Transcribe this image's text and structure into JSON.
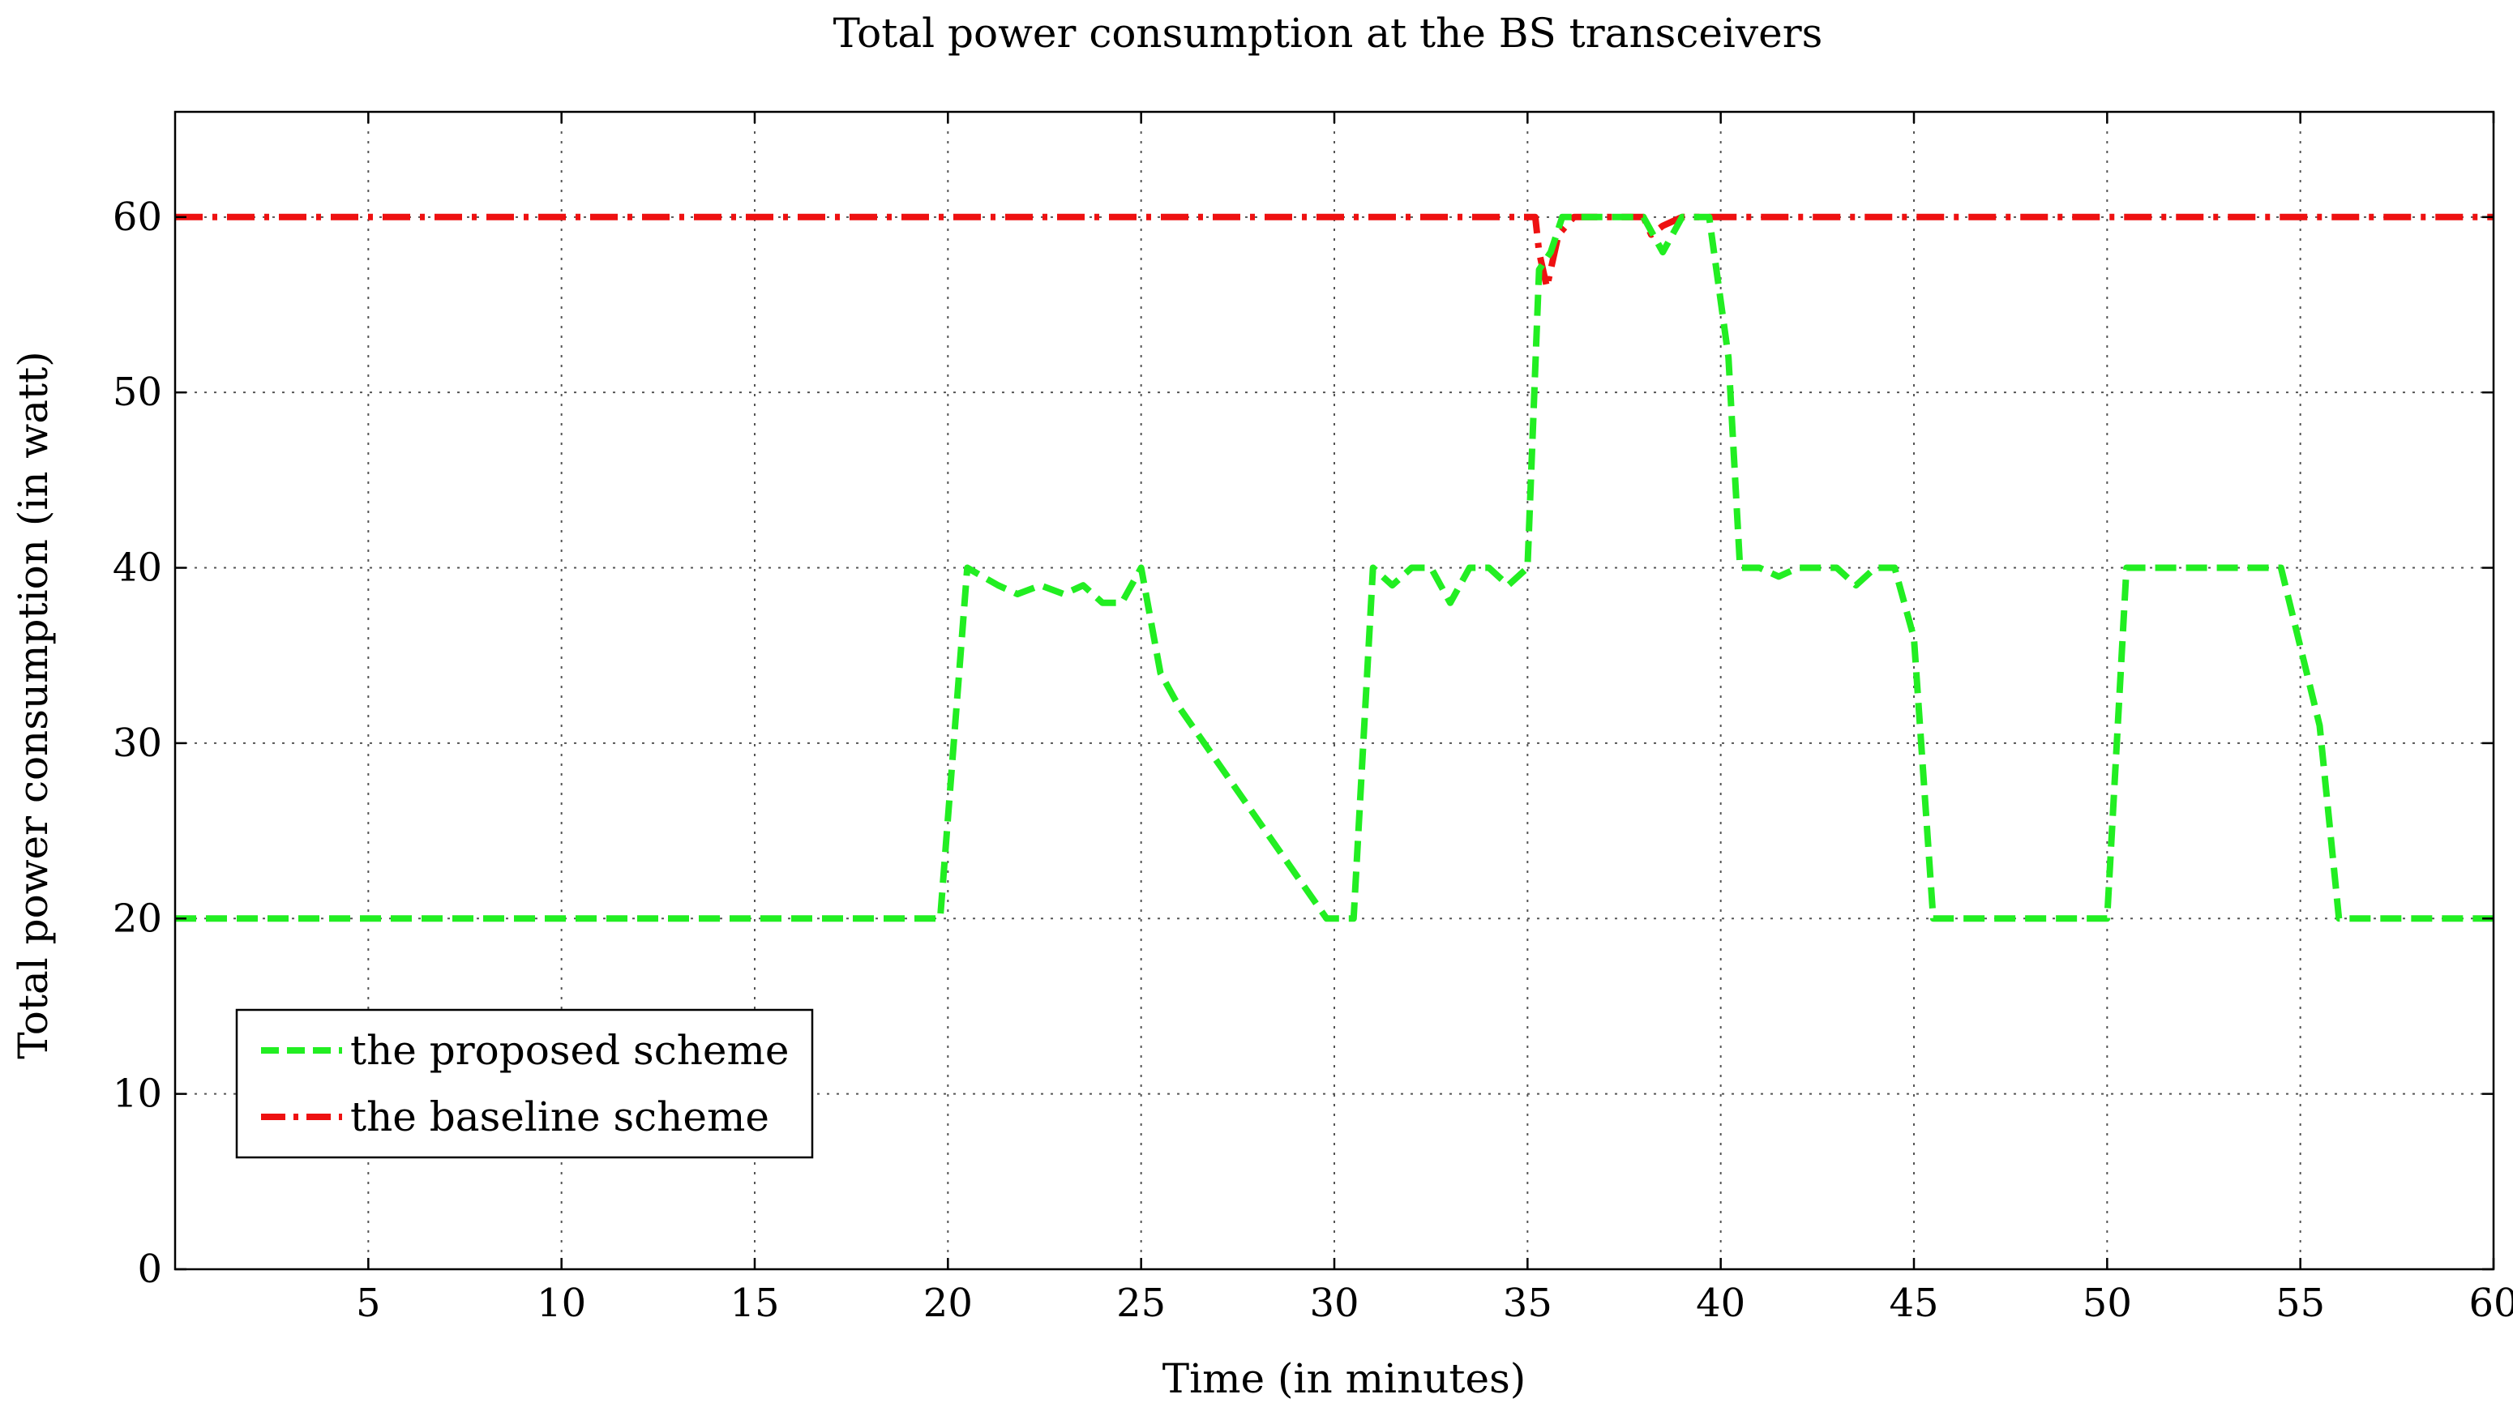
{
  "chart_data": {
    "type": "line",
    "title": "Total power consumption at the BS transceivers",
    "xlabel": "Time (in minutes)",
    "ylabel": "Total power consumption (in watt)",
    "xlim": [
      0,
      60
    ],
    "ylim": [
      0,
      66
    ],
    "xticks": [
      5,
      10,
      15,
      20,
      25,
      30,
      35,
      40,
      45,
      50,
      55,
      60
    ],
    "yticks": [
      0,
      10,
      20,
      30,
      40,
      50,
      60
    ],
    "grid": true,
    "legend_position": "bottom-left",
    "series": [
      {
        "name": "the proposed scheme",
        "color": "#22ee22",
        "style": "dashed",
        "x": [
          0,
          19.8,
          20.5,
          21.3,
          21.8,
          22.4,
          23.0,
          23.5,
          24.0,
          24.5,
          25.0,
          25.5,
          26.0,
          29.8,
          30.5,
          31.0,
          31.5,
          32.0,
          32.5,
          33.0,
          33.5,
          34.0,
          34.5,
          35.0,
          35.3,
          35.6,
          35.9,
          36.3,
          37.0,
          38.0,
          38.5,
          39.0,
          39.4,
          39.7,
          40.2,
          40.5,
          41.0,
          41.5,
          42.0,
          42.5,
          43.0,
          43.5,
          44.0,
          44.5,
          45.0,
          45.5,
          50.0,
          50.5,
          51.0,
          52.0,
          53.0,
          54.5,
          55.5,
          56.0,
          60.0
        ],
        "y": [
          20,
          20,
          40,
          39,
          38.5,
          39,
          38.5,
          39,
          38,
          38,
          40,
          34,
          32,
          20,
          20,
          40,
          39,
          40,
          40,
          38,
          40,
          40,
          39,
          40,
          57,
          58,
          60,
          60,
          60,
          60,
          58,
          60,
          60,
          60,
          52,
          40,
          40,
          39.5,
          40,
          40,
          40,
          39,
          40,
          40,
          36,
          20,
          20,
          40,
          40,
          40,
          40,
          40,
          31,
          20,
          20
        ],
        "x_corrected": [
          0,
          19.8,
          20.5,
          21.3,
          21.8,
          22.4,
          23.0,
          23.5,
          24.0,
          24.5,
          25.0,
          25.5,
          26.0,
          29.8,
          30.5,
          31.0,
          31.5,
          32.0,
          32.5,
          33.0,
          33.5,
          34.0,
          34.5,
          35.0,
          35.3,
          35.6,
          35.9,
          36.3,
          37.0,
          38.0,
          38.5,
          39.0,
          39.4,
          39.7,
          40.2,
          40.5,
          41.0,
          41.5,
          42.0,
          42.5,
          43.0,
          43.5,
          44.0,
          44.5,
          45.0,
          45.5,
          50.0,
          50.5,
          51.0,
          52.0,
          53.0,
          54.5,
          55.5,
          56.0,
          60.0
        ]
      },
      {
        "name": "the baseline scheme",
        "color": "#ee1111",
        "style": "dashdot",
        "x": [
          0,
          35.2,
          35.3,
          35.5,
          35.8,
          36.2,
          37.0,
          38.0,
          38.2,
          38.5,
          39.0,
          60.0
        ],
        "y": [
          60,
          60,
          58,
          56,
          59,
          60,
          60,
          60,
          59,
          59.5,
          60,
          60
        ]
      }
    ]
  }
}
